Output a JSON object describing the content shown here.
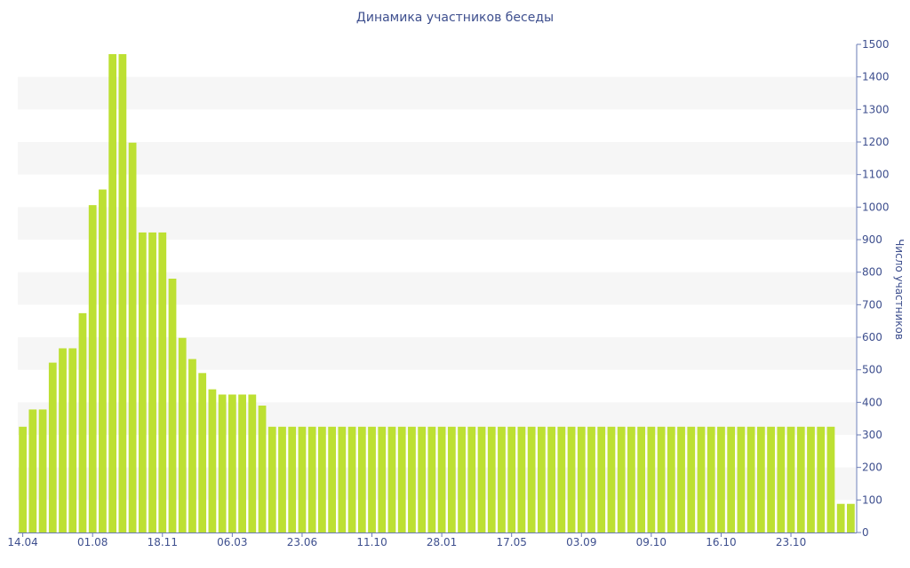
{
  "chart_data": {
    "type": "bar",
    "title": "Динамика участников беседы",
    "xlabel": "",
    "ylabel": "Число участников",
    "ylim": [
      0,
      1500
    ],
    "y_ticks": [
      0,
      100,
      200,
      300,
      400,
      500,
      600,
      700,
      800,
      900,
      1000,
      1100,
      1200,
      1300,
      1400,
      1500
    ],
    "x_tick_labels": [
      {
        "label": "14.04",
        "index": 0
      },
      {
        "label": "01.08",
        "index": 7
      },
      {
        "label": "18.11",
        "index": 14
      },
      {
        "label": "06.03",
        "index": 21
      },
      {
        "label": "23.06",
        "index": 28
      },
      {
        "label": "11.10",
        "index": 35
      },
      {
        "label": "28.01",
        "index": 42
      },
      {
        "label": "17.05",
        "index": 49
      },
      {
        "label": "03.09",
        "index": 56
      },
      {
        "label": "09.10",
        "index": 63
      },
      {
        "label": "16.10",
        "index": 70
      },
      {
        "label": "23.10",
        "index": 77
      }
    ],
    "grid": true,
    "y_axis_position": "right",
    "bar_color": "#bde033",
    "band_color": "#f6f6f6",
    "text_color": "#3e4f8e",
    "axis_color": "#6a7bb5",
    "values": [
      325,
      378,
      378,
      522,
      566,
      566,
      674,
      1006,
      1054,
      1470,
      1470,
      1198,
      922,
      922,
      922,
      780,
      598,
      533,
      490,
      440,
      424,
      424,
      424,
      424,
      390,
      325,
      325,
      325,
      325,
      325,
      325,
      325,
      325,
      325,
      325,
      325,
      325,
      325,
      325,
      325,
      325,
      325,
      325,
      325,
      325,
      325,
      325,
      325,
      325,
      325,
      325,
      325,
      325,
      325,
      325,
      325,
      325,
      325,
      325,
      325,
      325,
      325,
      325,
      325,
      325,
      325,
      325,
      325,
      325,
      325,
      325,
      325,
      325,
      325,
      325,
      325,
      325,
      325,
      325,
      325,
      325,
      325,
      88,
      88
    ]
  }
}
